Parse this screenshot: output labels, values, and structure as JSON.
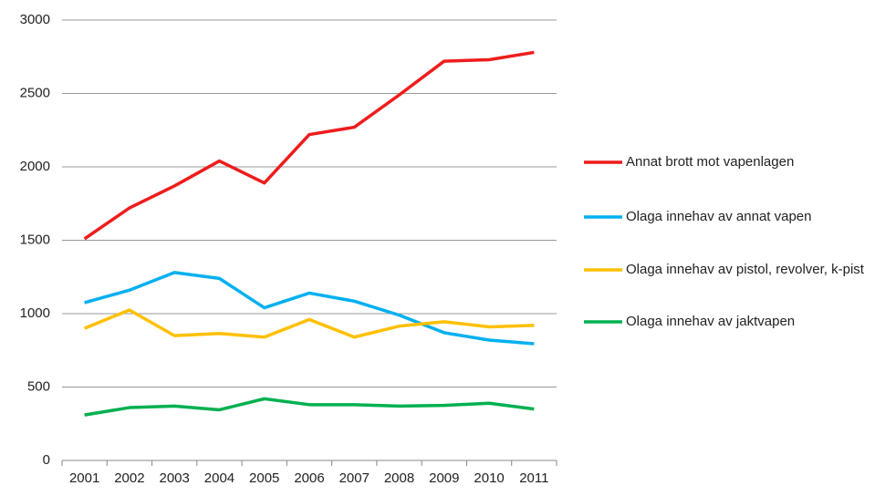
{
  "chart_data": {
    "type": "line",
    "categories": [
      "2001",
      "2002",
      "2003",
      "2004",
      "2005",
      "2006",
      "2007",
      "2008",
      "2009",
      "2010",
      "2011"
    ],
    "series": [
      {
        "name": "Annat brott mot vapenlagen",
        "color": "#ee1c1c",
        "values": [
          1510,
          1720,
          1870,
          2040,
          1890,
          2220,
          2270,
          2490,
          2720,
          2730,
          2780
        ]
      },
      {
        "name": "Olaga innehav av annat vapen",
        "color": "#00b0f0",
        "values": [
          1075,
          1160,
          1280,
          1240,
          1040,
          1140,
          1085,
          990,
          870,
          820,
          795
        ]
      },
      {
        "name": "Olaga innehav av pistol, revolver, k-pist",
        "color": "#ffc000",
        "values": [
          900,
          1025,
          850,
          865,
          840,
          960,
          840,
          915,
          945,
          910,
          920
        ]
      },
      {
        "name": "Olaga innehav av jaktvapen",
        "color": "#00b050",
        "values": [
          310,
          360,
          370,
          345,
          420,
          380,
          380,
          370,
          375,
          390,
          350
        ]
      }
    ],
    "ylim": [
      0,
      3000
    ],
    "yticks": [
      0,
      500,
      1000,
      1500,
      2000,
      2500,
      3000
    ],
    "grid": true,
    "legend": "right"
  }
}
